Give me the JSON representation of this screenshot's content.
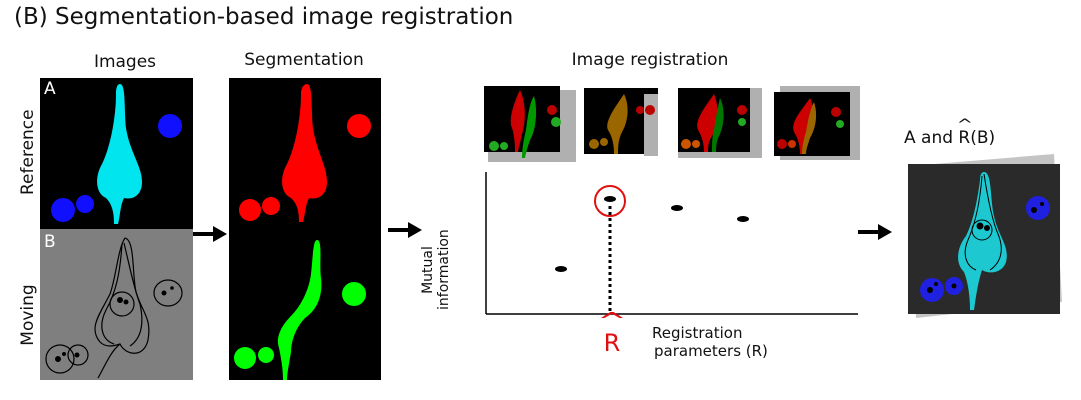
{
  "title": "(B) Segmentation-based image registration",
  "columns": {
    "images": "Images",
    "segmentation": "Segmentation",
    "registration": "Image registration"
  },
  "rows": {
    "reference": "Reference",
    "moving": "Moving"
  },
  "panel_letters": {
    "a": "A",
    "b": "B"
  },
  "plot": {
    "ylabel_line1": "Mutual",
    "ylabel_line2": "information",
    "xlabel_line1": "Registration",
    "xlabel_line2": "parameters (R)",
    "optimum_symbol": "R",
    "optimum_hat": "^"
  },
  "result": {
    "label_prefix": "A and ",
    "label_symbol": "R",
    "label_hat": "^",
    "label_suffix": "(B)"
  },
  "colors": {
    "reference_cell": "#00e5ee",
    "reference_blobs": "#1010ff",
    "segment_ref": "#ff0000",
    "segment_moving": "#00ff00",
    "moving_bg": "#7f7f7f",
    "highlight": "#e01010"
  }
}
